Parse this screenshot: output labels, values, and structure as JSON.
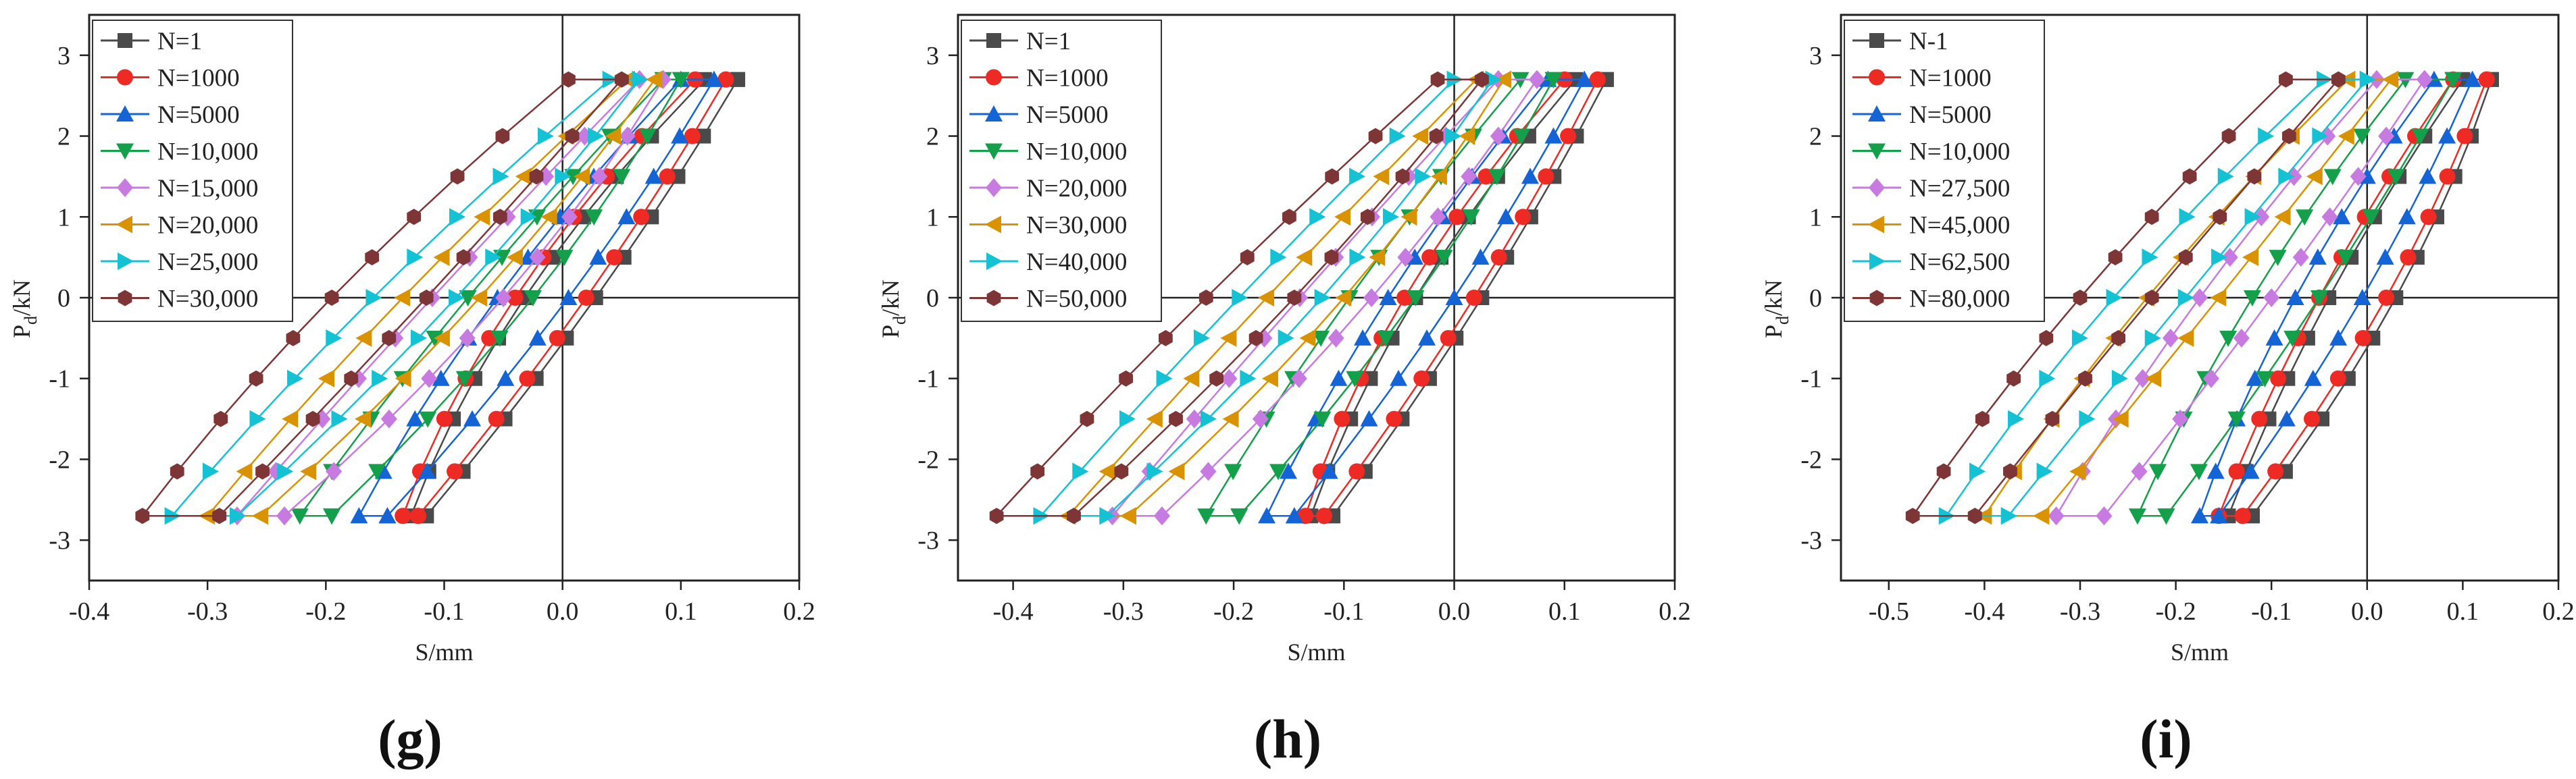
{
  "figure": {
    "panels": [
      "(g)",
      "(h)",
      "(i)"
    ]
  },
  "colors": {
    "N=1": "#4a4a4a",
    "N=1000": "#ee2a24",
    "blue": "#1464d6",
    "green": "#14a04a",
    "violet": "#c77be0",
    "orange": "#d99200",
    "cyan": "#14c2d4",
    "brown": "#7d3535"
  },
  "chart_data": [
    {
      "type": "line",
      "panel_label": "(g)",
      "xlabel": "S/mm",
      "ylabel_main": "P",
      "ylabel_sub": "d",
      "ylabel_unit": "/kN",
      "xlim": [
        -0.4,
        0.2
      ],
      "ylim": [
        -3.5,
        3.5
      ],
      "xticks": [
        -0.4,
        -0.3,
        -0.2,
        -0.1,
        0.0,
        0.1,
        0.2
      ],
      "xtick_labels": [
        "-0.4",
        "-0.3",
        "-0.2",
        "-0.1",
        "0.0",
        "0.1",
        "0.2"
      ],
      "yticks": [
        -3,
        -2,
        -1,
        0,
        1,
        2,
        3
      ],
      "ytick_labels": [
        "-3",
        "-2",
        "-1",
        "0",
        "1",
        "2",
        "3"
      ],
      "legend_position": "top-left",
      "series": [
        {
          "name": "N=1",
          "marker": "square",
          "color": "#4a4a4a",
          "loop": [
            0.148,
            0.12,
            -0.032,
            -0.128,
            -0.115,
            0.028
          ]
        },
        {
          "name": "N=1000",
          "marker": "circle",
          "color": "#ee2a24",
          "loop": [
            0.138,
            0.112,
            -0.04,
            -0.135,
            -0.122,
            0.02
          ]
        },
        {
          "name": "N=5000",
          "marker": "triangle-up",
          "color": "#1464d6",
          "loop": [
            0.128,
            0.1,
            -0.055,
            -0.172,
            -0.148,
            0.005
          ]
        },
        {
          "name": "N=10,000",
          "marker": "triangle-down",
          "color": "#14a04a",
          "loop": [
            0.1,
            0.085,
            -0.08,
            -0.222,
            -0.195,
            -0.025
          ]
        },
        {
          "name": "N=15,000",
          "marker": "diamond",
          "color": "#c77be0",
          "loop": [
            0.085,
            0.065,
            -0.11,
            -0.275,
            -0.235,
            -0.05
          ]
        },
        {
          "name": "N=20,000",
          "marker": "triangle-left",
          "color": "#d99200",
          "loop": [
            0.078,
            0.055,
            -0.135,
            -0.3,
            -0.255,
            -0.07
          ]
        },
        {
          "name": "N=25,000",
          "marker": "triangle-right",
          "color": "#14c2d4",
          "loop": [
            0.065,
            0.04,
            -0.16,
            -0.33,
            -0.275,
            -0.09
          ]
        },
        {
          "name": "N=30,000",
          "marker": "hexagon",
          "color": "#7d3535",
          "loop": [
            0.05,
            0.005,
            -0.195,
            -0.355,
            -0.29,
            -0.115
          ]
        }
      ]
    },
    {
      "type": "line",
      "panel_label": "(h)",
      "xlabel": "S/mm",
      "ylabel_main": "P",
      "ylabel_sub": "d",
      "ylabel_unit": "/kN",
      "xlim": [
        -0.45,
        0.2
      ],
      "ylim": [
        -3.5,
        3.5
      ],
      "xticks": [
        -0.4,
        -0.3,
        -0.2,
        -0.1,
        0.0,
        0.1,
        0.2
      ],
      "xtick_labels": [
        "-0.4",
        "-0.3",
        "-0.2",
        "-0.1",
        "0.0",
        "0.1",
        "0.2"
      ],
      "yticks": [
        -3,
        -2,
        -1,
        0,
        1,
        2,
        3
      ],
      "ytick_labels": [
        "-3",
        "-2",
        "-1",
        "0",
        "1",
        "2",
        "3"
      ],
      "legend_position": "top-left",
      "series": [
        {
          "name": "N=1",
          "marker": "square",
          "color": "#4a4a4a",
          "loop": [
            0.138,
            0.11,
            -0.035,
            -0.13,
            -0.11,
            0.025
          ]
        },
        {
          "name": "N=1000",
          "marker": "circle",
          "color": "#ee2a24",
          "loop": [
            0.13,
            0.1,
            -0.045,
            -0.135,
            -0.118,
            0.018
          ]
        },
        {
          "name": "N=5000",
          "marker": "triangle-up",
          "color": "#1464d6",
          "loop": [
            0.118,
            0.085,
            -0.06,
            -0.17,
            -0.145,
            0.0
          ]
        },
        {
          "name": "N=10,000",
          "marker": "triangle-down",
          "color": "#14a04a",
          "loop": [
            0.09,
            0.06,
            -0.095,
            -0.225,
            -0.195,
            -0.035
          ]
        },
        {
          "name": "N=20,000",
          "marker": "diamond",
          "color": "#c77be0",
          "loop": [
            0.075,
            0.04,
            -0.14,
            -0.31,
            -0.265,
            -0.075
          ]
        },
        {
          "name": "N=30,000",
          "marker": "triangle-left",
          "color": "#d99200",
          "loop": [
            0.045,
            0.02,
            -0.17,
            -0.35,
            -0.295,
            -0.1
          ]
        },
        {
          "name": "N=40,000",
          "marker": "triangle-right",
          "color": "#14c2d4",
          "loop": [
            0.035,
            0.0,
            -0.195,
            -0.375,
            -0.315,
            -0.12
          ]
        },
        {
          "name": "N=50,000",
          "marker": "hexagon",
          "color": "#7d3535",
          "loop": [
            0.025,
            -0.015,
            -0.225,
            -0.415,
            -0.345,
            -0.145
          ]
        }
      ]
    },
    {
      "type": "line",
      "panel_label": "(i)",
      "xlabel": "S/mm",
      "ylabel_main": "P",
      "ylabel_sub": "d",
      "ylabel_unit": "/kN",
      "xlim": [
        -0.55,
        0.2
      ],
      "ylim": [
        -3.5,
        3.5
      ],
      "xticks": [
        -0.5,
        -0.4,
        -0.3,
        -0.2,
        -0.1,
        0.0,
        0.1,
        0.2
      ],
      "xtick_labels": [
        "-0.5",
        "-0.4",
        "-0.3",
        "-0.2",
        "-0.1",
        "0.0",
        "0.1",
        "0.2"
      ],
      "yticks": [
        -3,
        -2,
        -1,
        0,
        1,
        2,
        3
      ],
      "ytick_labels": [
        "-3",
        "-2",
        "-1",
        "0",
        "1",
        "2",
        "3"
      ],
      "legend_position": "top-left",
      "series": [
        {
          "name": "N-1",
          "marker": "square",
          "color": "#4a4a4a",
          "loop": [
            0.13,
            0.1,
            -0.04,
            -0.145,
            -0.12,
            0.03
          ]
        },
        {
          "name": "N=1000",
          "marker": "circle",
          "color": "#ee2a24",
          "loop": [
            0.125,
            0.09,
            -0.05,
            -0.155,
            -0.13,
            0.02
          ]
        },
        {
          "name": "N=5000",
          "marker": "triangle-up",
          "color": "#1464d6",
          "loop": [
            0.11,
            0.07,
            -0.075,
            -0.175,
            -0.155,
            -0.005
          ]
        },
        {
          "name": "N=10,000",
          "marker": "triangle-down",
          "color": "#14a04a",
          "loop": [
            0.09,
            0.04,
            -0.12,
            -0.24,
            -0.21,
            -0.05
          ]
        },
        {
          "name": "N=27,500",
          "marker": "diamond",
          "color": "#c77be0",
          "loop": [
            0.06,
            0.01,
            -0.175,
            -0.325,
            -0.275,
            -0.1
          ]
        },
        {
          "name": "N=45,000",
          "marker": "triangle-left",
          "color": "#d99200",
          "loop": [
            0.025,
            -0.02,
            -0.23,
            -0.4,
            -0.34,
            -0.155
          ]
        },
        {
          "name": "N=62,500",
          "marker": "triangle-right",
          "color": "#14c2d4",
          "loop": [
            0.0,
            -0.045,
            -0.265,
            -0.44,
            -0.375,
            -0.19
          ]
        },
        {
          "name": "N=80,000",
          "marker": "hexagon",
          "color": "#7d3535",
          "loop": [
            -0.03,
            -0.085,
            -0.3,
            -0.475,
            -0.41,
            -0.225
          ]
        }
      ]
    }
  ]
}
